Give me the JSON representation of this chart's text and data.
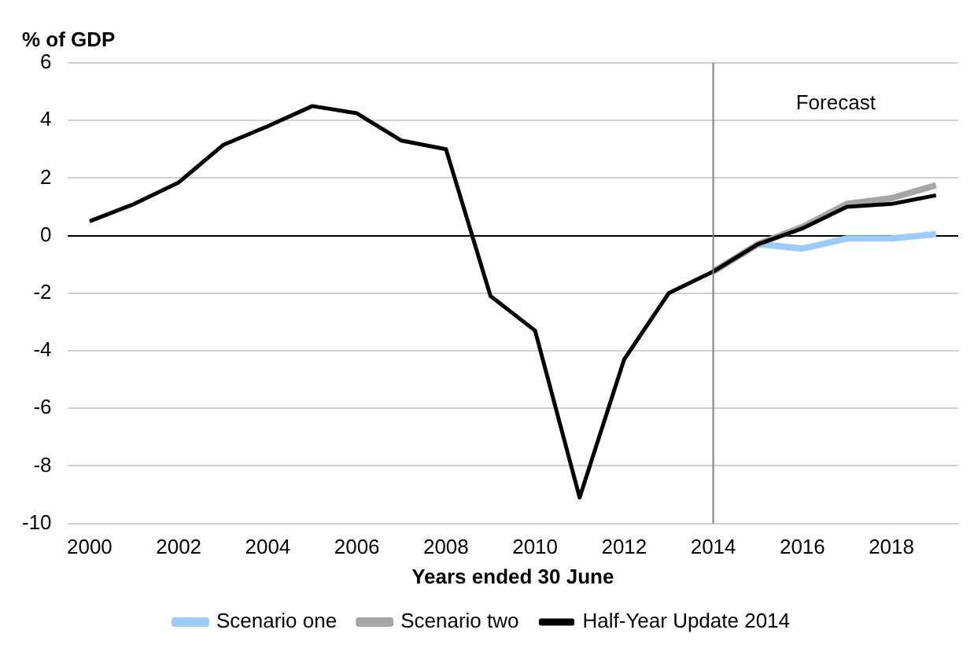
{
  "chart_data": {
    "type": "line",
    "ylabel": "% of GDP",
    "xlabel": "Years ended 30 June",
    "x": [
      2000,
      2001,
      2002,
      2003,
      2004,
      2005,
      2006,
      2007,
      2008,
      2009,
      2010,
      2011,
      2012,
      2013,
      2014,
      2015,
      2016,
      2017,
      2018,
      2019
    ],
    "series": [
      {
        "name": "Scenario one",
        "color": "#99ccff",
        "x": [
          2014,
          2015,
          2016,
          2017,
          2018,
          2019
        ],
        "values": [
          -1.25,
          -0.3,
          -0.45,
          -0.1,
          -0.1,
          0.05
        ]
      },
      {
        "name": "Scenario two",
        "color": "#a6a6a6",
        "x": [
          2014,
          2015,
          2016,
          2017,
          2018,
          2019
        ],
        "values": [
          -1.25,
          -0.3,
          0.3,
          1.1,
          1.3,
          1.75
        ]
      },
      {
        "name": "Half-Year Update 2014",
        "color": "#000000",
        "values": [
          0.5,
          1.1,
          1.85,
          3.15,
          3.8,
          4.5,
          4.25,
          3.3,
          3.0,
          -2.1,
          -3.3,
          -9.1,
          -4.3,
          -2.0,
          -1.25,
          -0.3,
          0.25,
          1.0,
          1.1,
          1.4
        ]
      }
    ],
    "xlim": [
      1999.5,
      2019.5
    ],
    "xticks": [
      2000,
      2002,
      2004,
      2006,
      2008,
      2010,
      2012,
      2014,
      2016,
      2018
    ],
    "ylim": [
      -10,
      6
    ],
    "yticks": [
      -10,
      -8,
      -6,
      -4,
      -2,
      0,
      2,
      4,
      6
    ],
    "ref_lines": [
      {
        "axis": "x",
        "value": 2014,
        "color": "#808080"
      }
    ],
    "annotations": [
      "Forecast"
    ],
    "grid": "y",
    "legend": "bottom",
    "marker": "none",
    "line_style": "solid"
  }
}
